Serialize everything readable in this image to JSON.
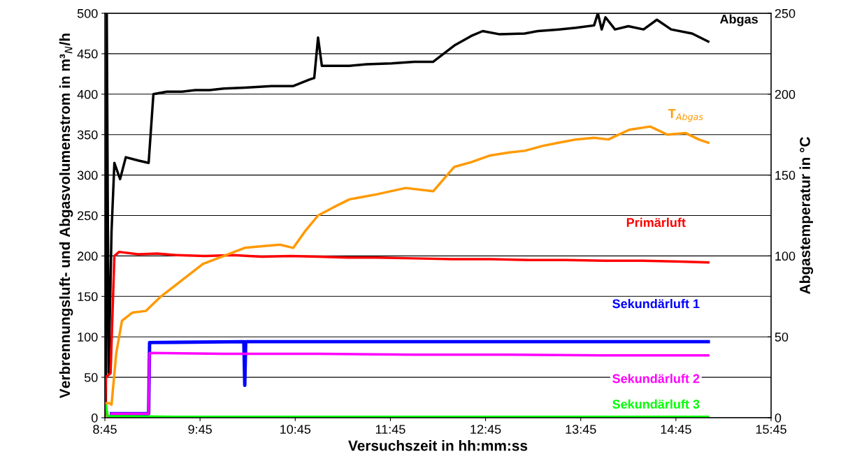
{
  "chart_data": {
    "type": "line",
    "xlabel": "Versuchszeit in hh:mm:ss",
    "ylabel": "Verbrennungsluft- und Abgasvolumenstrom in m³$_{N}$/h",
    "y2label": "Abgastemperatur in °C",
    "xlim": [
      8.75,
      15.75
    ],
    "xticks": [
      {
        "value": 8.75,
        "label": "8:45"
      },
      {
        "value": 9.75,
        "label": "9:45"
      },
      {
        "value": 10.75,
        "label": "10:45"
      },
      {
        "value": 11.75,
        "label": "11:45"
      },
      {
        "value": 12.75,
        "label": "12:45"
      },
      {
        "value": 13.75,
        "label": "13:45"
      },
      {
        "value": 14.75,
        "label": "14:45"
      },
      {
        "value": 15.75,
        "label": "15:45"
      }
    ],
    "ylim": [
      0,
      500
    ],
    "yticks": [
      0,
      50,
      100,
      150,
      200,
      250,
      300,
      350,
      400,
      450,
      500
    ],
    "y2lim": [
      0,
      250
    ],
    "y2ticks": [
      0,
      50,
      100,
      150,
      200,
      250
    ],
    "grid": "y",
    "legend": false,
    "series": [
      {
        "name": "Abgas",
        "color": "#000000",
        "x": [
          8.76,
          8.77,
          8.79,
          8.82,
          8.85,
          8.91,
          8.97,
          9.1,
          9.21,
          9.26,
          9.4,
          9.56,
          9.7,
          9.85,
          10.0,
          10.22,
          10.5,
          10.73,
          10.9,
          10.95,
          10.99,
          11.03,
          11.15,
          11.32,
          11.5,
          11.76,
          12.0,
          12.2,
          12.42,
          12.6,
          12.72,
          12.9,
          13.16,
          13.3,
          13.52,
          13.7,
          13.89,
          13.93,
          13.97,
          14.01,
          14.11,
          14.25,
          14.41,
          14.55,
          14.7,
          14.92,
          15.09
        ],
        "values": [
          10,
          500,
          55,
          230,
          315,
          295,
          322,
          318,
          315,
          400,
          403,
          403,
          405,
          405,
          407,
          408,
          410,
          410,
          418,
          420,
          470,
          435,
          435,
          435,
          437,
          438,
          440,
          440,
          460,
          472,
          478,
          474,
          475,
          478,
          480,
          482,
          485,
          500,
          480,
          495,
          480,
          484,
          480,
          492,
          480,
          475,
          465
        ]
      },
      {
        "name": "T$_{Abgas}$",
        "axis": "y2",
        "color": "#ff9900",
        "x": [
          8.75,
          8.8,
          8.82,
          8.87,
          8.93,
          9.04,
          9.18,
          9.34,
          9.56,
          9.78,
          10.0,
          10.22,
          10.4,
          10.59,
          10.73,
          10.85,
          10.99,
          11.15,
          11.32,
          11.6,
          11.91,
          12.2,
          12.42,
          12.6,
          12.79,
          13.0,
          13.16,
          13.35,
          13.52,
          13.7,
          13.89,
          14.04,
          14.26,
          14.48,
          14.66,
          14.85,
          14.99,
          15.09
        ],
        "values": [
          9,
          9,
          8,
          40,
          60,
          65,
          66,
          75,
          85,
          95,
          100,
          105,
          106,
          107,
          105,
          115,
          125,
          130,
          135,
          138,
          142,
          140,
          155,
          158,
          162,
          164,
          165,
          168,
          170,
          172,
          173,
          172,
          178,
          180,
          175,
          176,
          172,
          170
        ]
      },
      {
        "name": "Primärluft",
        "color": "#ff0000",
        "x": [
          8.75,
          8.76,
          8.81,
          8.85,
          8.9,
          9.1,
          9.3,
          9.5,
          9.8,
          10.1,
          10.4,
          10.7,
          11.0,
          11.3,
          11.6,
          12.0,
          12.4,
          12.8,
          13.2,
          13.6,
          14.0,
          14.4,
          14.8,
          15.09
        ],
        "values": [
          0,
          50,
          55,
          200,
          205,
          202,
          203,
          201,
          200,
          201,
          199,
          200,
          199,
          198,
          198,
          197,
          196,
          196,
          195,
          195,
          194,
          194,
          193,
          192
        ]
      },
      {
        "name": "Sekundärluft 1",
        "color": "#0000ff",
        "x": [
          8.82,
          9.21,
          9.22,
          10.21,
          10.22,
          10.23,
          11.5,
          12.5,
          13.5,
          14.5,
          15.09
        ],
        "values": [
          5,
          5,
          93,
          94,
          40,
          94,
          94,
          94,
          94,
          94,
          94
        ]
      },
      {
        "name": "Sekundärluft 2",
        "color": "#ff00ff",
        "x": [
          8.82,
          9.21,
          9.22,
          10.0,
          11.0,
          12.0,
          13.0,
          14.0,
          15.09
        ],
        "values": [
          5,
          5,
          80,
          79,
          79,
          78,
          78,
          77,
          77
        ]
      },
      {
        "name": "Sekundärluft 3",
        "color": "#00ff00",
        "x": [
          8.75,
          8.76,
          8.78,
          9.5,
          10.5,
          11.5,
          12.5,
          13.5,
          14.5,
          15.09
        ],
        "values": [
          15,
          15,
          2,
          1,
          1,
          1,
          1,
          1,
          1,
          1
        ]
      }
    ]
  }
}
